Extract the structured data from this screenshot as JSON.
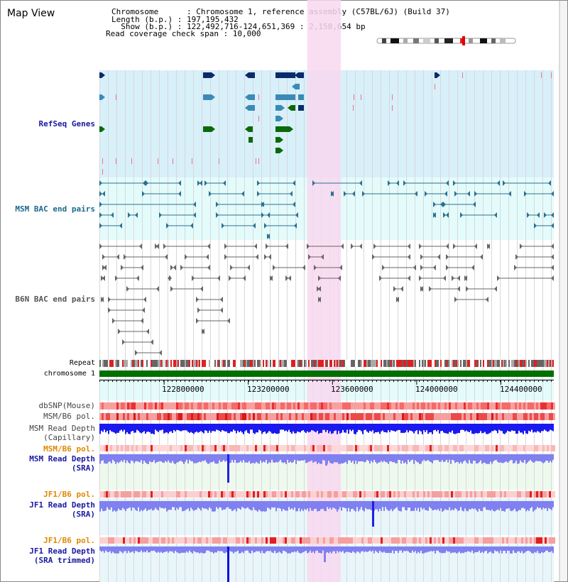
{
  "title": "Map View",
  "info": {
    "line1": "Chromosome      : Chromosome 1, reference assembly (C57BL/6J) (Build 37)",
    "line2": "Length (b.p.) : 197,195,432",
    "line3": "  Show (b.p.) : 122,492,716-124,651,369 : 2,158,654 bp",
    "line4": "Read coverage check span : 10,000"
  },
  "tracks": {
    "refseq": {
      "label": "RefSeq Genes",
      "color": "#1a1aa0"
    },
    "msm_bac": {
      "label": "MSM BAC end pairs",
      "color": "#1a6b8a"
    },
    "b6n_bac": {
      "label": "B6N BAC end pairs",
      "color": "#555555"
    },
    "repeat": {
      "label": "Repeat"
    },
    "chromosome": {
      "label": "chromosome 1"
    },
    "dbsnp": {
      "label": "dbSNP(Mouse)"
    },
    "msm_b6_pol_1": {
      "label": "MSM/B6 pol."
    },
    "msm_depth_cap": {
      "label1": "MSM Read Depth",
      "label2": "(Capillary)"
    },
    "msm_b6_pol_2": {
      "label": "MSM/B6 pol.",
      "color": "#e08800"
    },
    "msm_depth_sra": {
      "label1": "MSM Read Depth",
      "label2": "(SRA)",
      "color": "#1a1aa0"
    },
    "jf1_b6_pol_1": {
      "label": "JF1/B6 pol.",
      "color": "#e08800"
    },
    "jf1_depth_sra": {
      "label1": "JF1 Read Depth",
      "label2": "(SRA)",
      "color": "#1a1aa0"
    },
    "jf1_b6_pol_2": {
      "label": "JF1/B6 pol.",
      "color": "#e08800"
    },
    "jf1_depth_trim": {
      "label1": "JF1 Read Depth",
      "label2": "(SRA trimmed)",
      "color": "#1a1aa0"
    }
  },
  "axis": {
    "ticks": [
      "122800000",
      "123200000",
      "123600000",
      "124000000",
      "124400000"
    ],
    "tick_values": [
      122800000,
      123200000,
      123600000,
      124000000,
      124400000
    ],
    "start": 122492716,
    "end": 124651369
  },
  "highlight": {
    "start": 123480000,
    "end": 123640000,
    "color": "#f8d8f0"
  },
  "colors": {
    "refseq_dark": "#0a2a6a",
    "refseq_mid": "#3a8ab8",
    "refseq_green": "#0a6a0a",
    "chromosome_bar": "#007000",
    "depth_cap": "#1a1af0",
    "depth_sra": "#8080f0",
    "snp": "#f07070"
  }
}
